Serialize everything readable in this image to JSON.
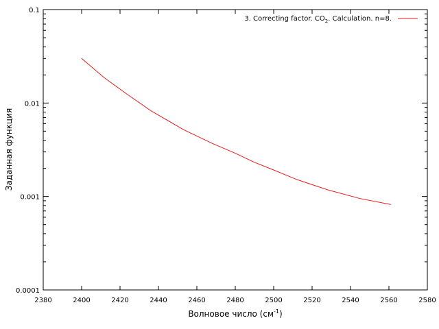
{
  "chart_data": {
    "type": "line",
    "xlabel": "Волновое число (см",
    "xlabel_sup": "-1",
    "xlabel_close": ")",
    "ylabel": "Заданная функция",
    "xlim": [
      2380,
      2580
    ],
    "ylim": [
      0.0001,
      0.1
    ],
    "y_scale": "log",
    "grid": false,
    "legend_position": "top-right",
    "x_ticks": [
      2380,
      2400,
      2420,
      2440,
      2460,
      2480,
      2500,
      2520,
      2540,
      2560,
      2580
    ],
    "x_tick_labels": [
      "2380",
      "2400",
      "2420",
      "2440",
      "2460",
      "2480",
      "2500",
      "2520",
      "2540",
      "2560",
      "2580"
    ],
    "y_ticks": [
      0.0001,
      0.001,
      0.01,
      0.1
    ],
    "y_tick_labels": [
      "0.0001",
      "0.001",
      "0.01",
      "0.1"
    ],
    "series": [
      {
        "name_pre": "3. Correcting factor. CO",
        "name_sub": "2",
        "name_post": ". Calculation. n=8.",
        "color": "#e41a1c",
        "x": [
          2400,
          2412,
          2424,
          2436,
          2453,
          2468,
          2480,
          2490,
          2500,
          2512,
          2528,
          2545,
          2561
        ],
        "y": [
          0.03,
          0.0185,
          0.0123,
          0.0083,
          0.0052,
          0.0037,
          0.0029,
          0.00232,
          0.00192,
          0.00152,
          0.00118,
          0.00095,
          0.00082
        ]
      }
    ]
  }
}
